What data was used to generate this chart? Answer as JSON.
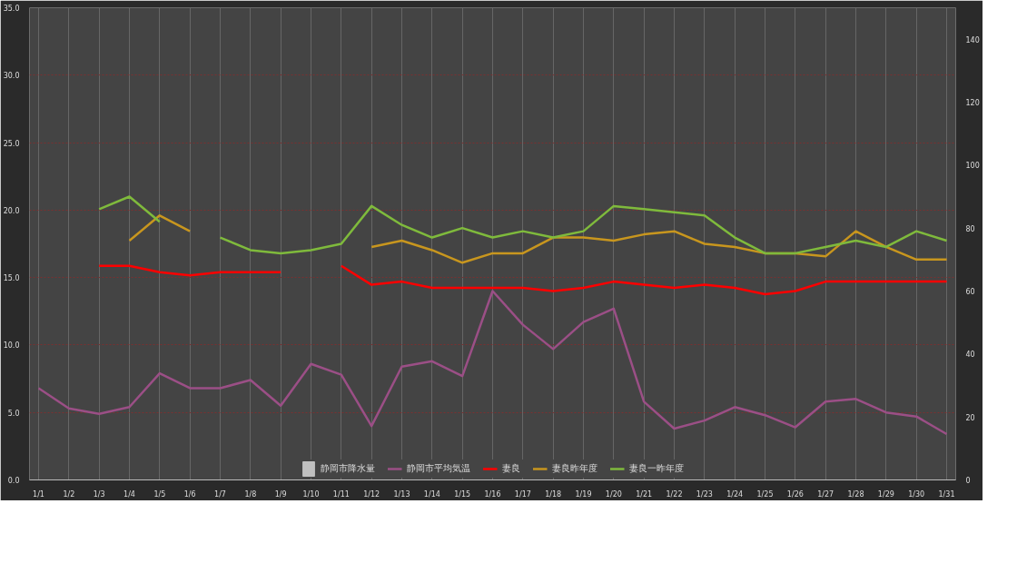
{
  "chart_data": {
    "type": "line",
    "categories": [
      "1/1",
      "1/2",
      "1/3",
      "1/4",
      "1/5",
      "1/6",
      "1/7",
      "1/8",
      "1/9",
      "1/10",
      "1/11",
      "1/12",
      "1/13",
      "1/14",
      "1/15",
      "1/16",
      "1/17",
      "1/18",
      "1/19",
      "1/20",
      "1/21",
      "1/22",
      "1/23",
      "1/24",
      "1/25",
      "1/26",
      "1/27",
      "1/28",
      "1/29",
      "1/30",
      "1/31"
    ],
    "series": [
      {
        "name": "静岡市降水量",
        "type": "bar",
        "color": "#c0c0c0",
        "values": [
          null,
          null,
          null,
          null,
          null,
          null,
          null,
          null,
          null,
          null,
          null,
          null,
          null,
          null,
          null,
          null,
          null,
          null,
          null,
          null,
          null,
          null,
          null,
          null,
          null,
          null,
          null,
          null,
          null,
          null,
          null
        ]
      },
      {
        "name": "静岡市平均気温",
        "color": "#9b4f86",
        "values": [
          6.8,
          5.3,
          4.9,
          5.4,
          7.9,
          6.8,
          6.8,
          7.4,
          5.5,
          8.6,
          7.8,
          4.0,
          8.4,
          8.8,
          7.7,
          14.0,
          11.5,
          9.7,
          11.7,
          12.7,
          5.8,
          3.8,
          4.4,
          5.4,
          4.8,
          3.9,
          5.8,
          6.0,
          5.0,
          4.7,
          3.4
        ]
      },
      {
        "name": "妻良",
        "axis": "y2",
        "color": "#ff0000",
        "values": [
          null,
          null,
          68,
          68,
          66,
          65,
          66,
          66,
          66,
          null,
          68,
          62,
          63,
          61,
          61,
          61,
          61,
          60,
          61,
          63,
          62,
          61,
          62,
          61,
          59,
          60,
          63,
          63,
          63,
          63,
          63
        ]
      },
      {
        "name": "妻良昨年度",
        "axis": "y2",
        "color": "#c8961e",
        "values": [
          null,
          null,
          null,
          76,
          84,
          79,
          null,
          null,
          null,
          null,
          null,
          74,
          76,
          73,
          69,
          72,
          72,
          77,
          77,
          76,
          78,
          79,
          75,
          74,
          72,
          72,
          71,
          79,
          74,
          70,
          70
        ]
      },
      {
        "name": "妻良一昨年度",
        "axis": "y2",
        "color": "#7fba3c",
        "values": [
          null,
          null,
          86,
          90,
          82,
          null,
          77,
          73,
          72,
          73,
          75,
          87,
          81,
          77,
          80,
          77,
          79,
          77,
          79,
          87,
          86,
          85,
          84,
          77,
          72,
          72,
          74,
          76,
          74,
          79,
          76
        ]
      }
    ],
    "ylim": [
      0,
      35
    ],
    "yticks": [
      {
        "value": 0,
        "label": "0.0"
      },
      {
        "value": 5,
        "label": "5.0"
      },
      {
        "value": 10,
        "label": "10.0"
      },
      {
        "value": 15,
        "label": "15.0"
      },
      {
        "value": 20,
        "label": "20.0"
      },
      {
        "value": 25,
        "label": "25.0"
      },
      {
        "value": 30,
        "label": "30.0"
      },
      {
        "value": 35,
        "label": "35.0"
      }
    ],
    "y2lim": [
      0,
      150
    ],
    "y2ticks": [
      0,
      20,
      40,
      60,
      80,
      100,
      120,
      140
    ],
    "grid": true,
    "legend": "bottom"
  }
}
